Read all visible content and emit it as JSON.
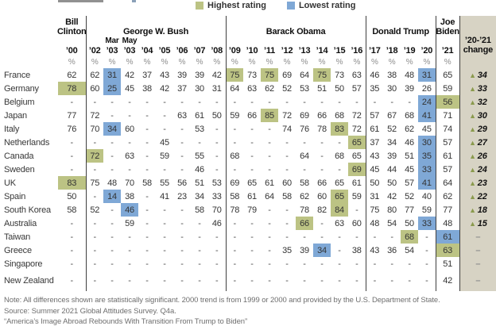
{
  "colors": {
    "highest_bg": "#bcc384",
    "lowest_bg": "#7fa8d6",
    "change_col_bg": "#d7d3c4",
    "triangle": "#8a9a4d"
  },
  "chart_data": {
    "type": "table",
    "legend": [
      {
        "label": "Highest rating",
        "color_key": "highest_bg"
      },
      {
        "label": "Lowest rating",
        "color_key": "lowest_bg"
      }
    ],
    "col_groups": [
      {
        "label": "Bill Clinton",
        "lines": [
          "Bill",
          "Clinton"
        ],
        "span": 1
      },
      {
        "label": "George W. Bush",
        "span": 8
      },
      {
        "label": "Barack Obama",
        "span": 8
      },
      {
        "label": "Donald Trump",
        "span": 4
      },
      {
        "label": "Joe Biden",
        "lines": [
          "Joe",
          "Biden"
        ],
        "span": 1
      }
    ],
    "change_column": {
      "header_lines": [
        "’20-’21",
        "change"
      ],
      "up_symbol": "▲",
      "no_value_symbol": "–"
    },
    "years": [
      "’00",
      "’02",
      "’03",
      "’03",
      "’04",
      "’05",
      "’06",
      "’07",
      "’08",
      "’09",
      "’10",
      "’11",
      "’12",
      "’13",
      "’14",
      "’15",
      "’16",
      "’17",
      "’18",
      "’19",
      "’20",
      "’21"
    ],
    "sub_labels": {
      "2": "Mar",
      "3": "May"
    },
    "unit_row": "%",
    "rows": [
      {
        "country": "France",
        "v": [
          "62",
          "62",
          "31",
          "42",
          "37",
          "43",
          "39",
          "39",
          "42",
          "75",
          "73",
          "75",
          "69",
          "64",
          "75",
          "73",
          "63",
          "46",
          "38",
          "48",
          "31",
          "65"
        ],
        "hi": [
          9,
          11,
          14
        ],
        "lo": [
          2,
          20
        ],
        "chg": "34"
      },
      {
        "country": "Germany",
        "v": [
          "78",
          "60",
          "25",
          "45",
          "38",
          "42",
          "37",
          "30",
          "31",
          "64",
          "63",
          "62",
          "52",
          "53",
          "51",
          "50",
          "57",
          "35",
          "30",
          "39",
          "26",
          "59"
        ],
        "hi": [
          0
        ],
        "lo": [
          2
        ],
        "chg": "33"
      },
      {
        "country": "Belgium",
        "v": [
          "-",
          "-",
          "-",
          "-",
          "-",
          "-",
          "-",
          "-",
          "-",
          "-",
          "-",
          "-",
          "-",
          "-",
          "-",
          "-",
          "-",
          "-",
          "-",
          "-",
          "24",
          "56"
        ],
        "hi": [
          21
        ],
        "lo": [
          20
        ],
        "chg": "32"
      },
      {
        "country": "Japan",
        "v": [
          "77",
          "72",
          "-",
          "-",
          "-",
          "-",
          "63",
          "61",
          "50",
          "59",
          "66",
          "85",
          "72",
          "69",
          "66",
          "68",
          "72",
          "57",
          "67",
          "68",
          "41",
          "71"
        ],
        "hi": [
          11
        ],
        "lo": [
          20
        ],
        "chg": "30"
      },
      {
        "country": "Italy",
        "v": [
          "76",
          "70",
          "34",
          "60",
          "-",
          "-",
          "-",
          "53",
          "-",
          "-",
          "-",
          "-",
          "74",
          "76",
          "78",
          "83",
          "72",
          "61",
          "52",
          "62",
          "45",
          "74"
        ],
        "hi": [
          15
        ],
        "lo": [
          2
        ],
        "chg": "29"
      },
      {
        "country": "Netherlands",
        "v": [
          "-",
          "-",
          "-",
          "-",
          "-",
          "45",
          "-",
          "-",
          "-",
          "-",
          "-",
          "-",
          "-",
          "-",
          "-",
          "-",
          "65",
          "37",
          "34",
          "46",
          "30",
          "57"
        ],
        "hi": [
          16
        ],
        "lo": [
          20
        ],
        "chg": "27"
      },
      {
        "country": "Canada",
        "v": [
          "-",
          "72",
          "-",
          "63",
          "-",
          "59",
          "-",
          "55",
          "-",
          "68",
          "-",
          "-",
          "-",
          "64",
          "-",
          "68",
          "65",
          "43",
          "39",
          "51",
          "35",
          "61"
        ],
        "hi": [
          1
        ],
        "lo": [
          20
        ],
        "chg": "26"
      },
      {
        "country": "Sweden",
        "v": [
          "-",
          "-",
          "-",
          "-",
          "-",
          "-",
          "-",
          "46",
          "-",
          "-",
          "-",
          "-",
          "-",
          "-",
          "-",
          "-",
          "69",
          "45",
          "44",
          "45",
          "33",
          "57"
        ],
        "hi": [
          16
        ],
        "lo": [
          20
        ],
        "chg": "24"
      },
      {
        "country": "UK",
        "v": [
          "83",
          "75",
          "48",
          "70",
          "58",
          "55",
          "56",
          "51",
          "53",
          "69",
          "65",
          "61",
          "60",
          "58",
          "66",
          "65",
          "61",
          "50",
          "50",
          "57",
          "41",
          "64"
        ],
        "hi": [
          0
        ],
        "lo": [
          20
        ],
        "chg": "23"
      },
      {
        "country": "Spain",
        "v": [
          "50",
          "-",
          "14",
          "38",
          "-",
          "41",
          "23",
          "34",
          "33",
          "58",
          "61",
          "64",
          "58",
          "62",
          "60",
          "65",
          "59",
          "31",
          "42",
          "52",
          "40",
          "62"
        ],
        "hi": [
          15
        ],
        "lo": [
          2
        ],
        "chg": "22"
      },
      {
        "country": "South Korea",
        "v": [
          "58",
          "52",
          "-",
          "46",
          "-",
          "-",
          "-",
          "58",
          "70",
          "78",
          "79",
          "-",
          "-",
          "78",
          "82",
          "84",
          "-",
          "75",
          "80",
          "77",
          "59",
          "77"
        ],
        "hi": [
          15
        ],
        "lo": [
          3
        ],
        "chg": "18"
      },
      {
        "country": "Australia",
        "v": [
          "-",
          "-",
          "-",
          "59",
          "-",
          "-",
          "-",
          "-",
          "46",
          "-",
          "-",
          "-",
          "-",
          "66",
          "-",
          "63",
          "60",
          "48",
          "54",
          "50",
          "33",
          "48"
        ],
        "hi": [
          13
        ],
        "lo": [
          20
        ],
        "chg": "15"
      },
      {
        "country": "Taiwan",
        "v": [
          "-",
          "-",
          "-",
          "-",
          "-",
          "-",
          "-",
          "-",
          "-",
          "-",
          "-",
          "-",
          "-",
          "-",
          "-",
          "-",
          "-",
          "-",
          "-",
          "68",
          "-",
          "61"
        ],
        "hi": [
          19
        ],
        "lo": [
          21
        ],
        "chg": "–"
      },
      {
        "country": "Greece",
        "v": [
          "-",
          "-",
          "-",
          "-",
          "-",
          "-",
          "-",
          "-",
          "-",
          "-",
          "-",
          "-",
          "35",
          "39",
          "34",
          "-",
          "38",
          "43",
          "36",
          "54",
          "-",
          "63"
        ],
        "hi": [
          21
        ],
        "lo": [
          14
        ],
        "chg": "–"
      },
      {
        "country": "Singapore",
        "v": [
          "-",
          "-",
          "-",
          "-",
          "-",
          "-",
          "-",
          "-",
          "-",
          "-",
          "-",
          "-",
          "-",
          "-",
          "-",
          "-",
          "-",
          "-",
          "-",
          "-",
          "-",
          "51"
        ],
        "hi": [],
        "lo": [],
        "chg": "–"
      },
      {
        "country": "New Zealand",
        "v": [
          "-",
          "-",
          "-",
          "-",
          "-",
          "-",
          "-",
          "-",
          "-",
          "-",
          "-",
          "-",
          "-",
          "-",
          "-",
          "-",
          "-",
          "-",
          "-",
          "-",
          "-",
          "42"
        ],
        "hi": [],
        "lo": [],
        "chg": "–",
        "two_line": true
      }
    ]
  },
  "notes": [
    "Note: All differences shown are statistically significant. 2000 trend is from 1999 or 2000 and provided by the U.S. Department of State.",
    "Source: Summer 2021 Global Attitudes Survey. Q4a.",
    "“America’s Image Abroad Rebounds With Transition From Trump to Biden”"
  ]
}
